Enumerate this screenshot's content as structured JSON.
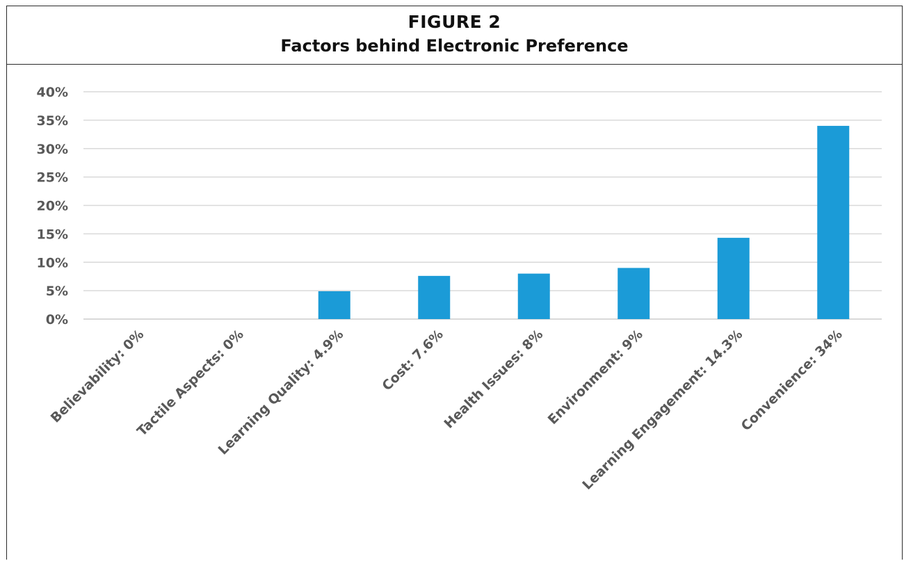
{
  "figure": {
    "label": "FIGURE 2",
    "title": "Factors behind Electronic Preference"
  },
  "chart_data": {
    "type": "bar",
    "title": "Factors behind Electronic Preference",
    "xlabel": "",
    "ylabel": "",
    "ylim": [
      0,
      40
    ],
    "yticks": [
      "0%",
      "5%",
      "10%",
      "15%",
      "20%",
      "25%",
      "30%",
      "35%",
      "40%"
    ],
    "grid": true,
    "categories": [
      "Believability: 0%",
      "Tactile Aspects: 0%",
      "Learning Quality: 4.9%",
      "Cost: 7.6%",
      "Health Issues: 8%",
      "Environment: 9%",
      "Learning Engagement: 14.3%",
      "Convenience: 34%"
    ],
    "values": [
      0,
      0,
      4.9,
      7.6,
      8,
      9,
      14.3,
      34
    ],
    "bar_color": "#1b9bd7",
    "grid_color": "#d9d9d9",
    "text_color": "#595959"
  }
}
